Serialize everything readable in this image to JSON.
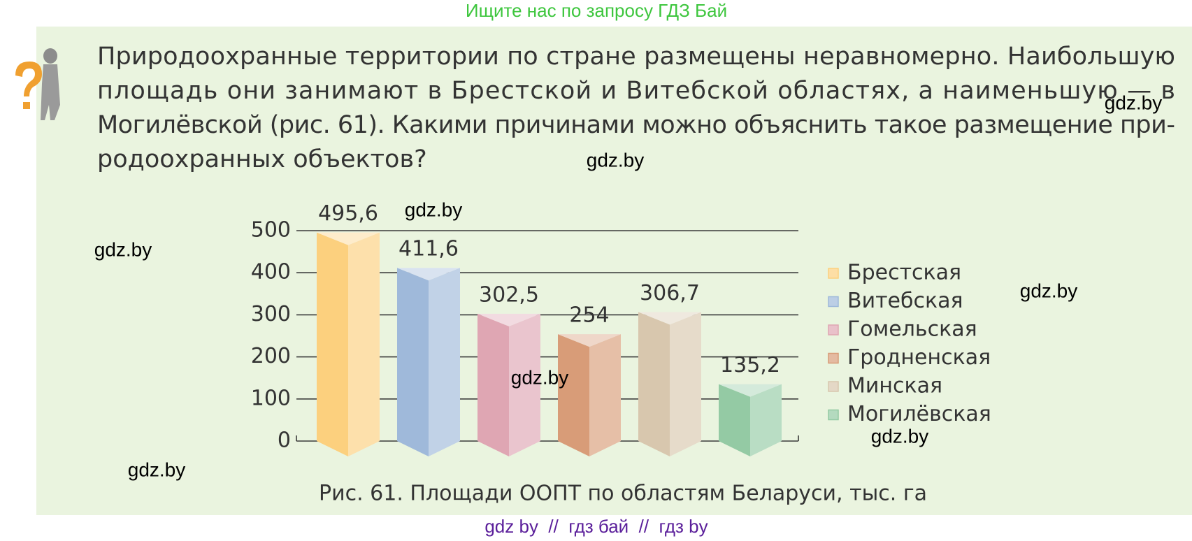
{
  "header": {
    "title": "Ищите нас по запросу ГДЗ Бай"
  },
  "paragraph": {
    "lines": [
      "Природоохранные территории по стране размещены неравномерно. Наибольшую",
      "площадь они занимают в Брестской и Витебской областях, а наименьшую — в",
      "Могилёвской (рис. 61). Какими причинами можно объяснить такое размещение при-",
      "родоохранных объектов?"
    ]
  },
  "chart_data": {
    "type": "bar",
    "categories": [
      "Брестская",
      "Витебская",
      "Гомельская",
      "Гродненская",
      "Минская",
      "Могилёвская"
    ],
    "values": [
      495.6,
      411.6,
      302.5,
      254,
      306.7,
      135.2
    ],
    "value_labels": [
      "495,6",
      "411,6",
      "302,5",
      "254",
      "306,7",
      "135,2"
    ],
    "colors": [
      "#fcd07e",
      "#9fb9da",
      "#dfa6b3",
      "#d89c78",
      "#d8c7ae",
      "#94caa4"
    ],
    "ylim": [
      0,
      500
    ],
    "yticks": [
      0,
      100,
      200,
      300,
      400,
      500
    ],
    "grid": true,
    "legend": "right",
    "caption": "Рис. 61. Площади ООПТ по областям Беларуси, тыс. га"
  },
  "watermarks": [
    "gdz.by",
    "gdz.by",
    "gdz.by",
    "gdz.by",
    "gdz.by",
    "gdz.by",
    "gdz.by",
    "gdz.by"
  ],
  "footer": {
    "text": "gdz by  //  гдз бай  //  гдз by"
  }
}
